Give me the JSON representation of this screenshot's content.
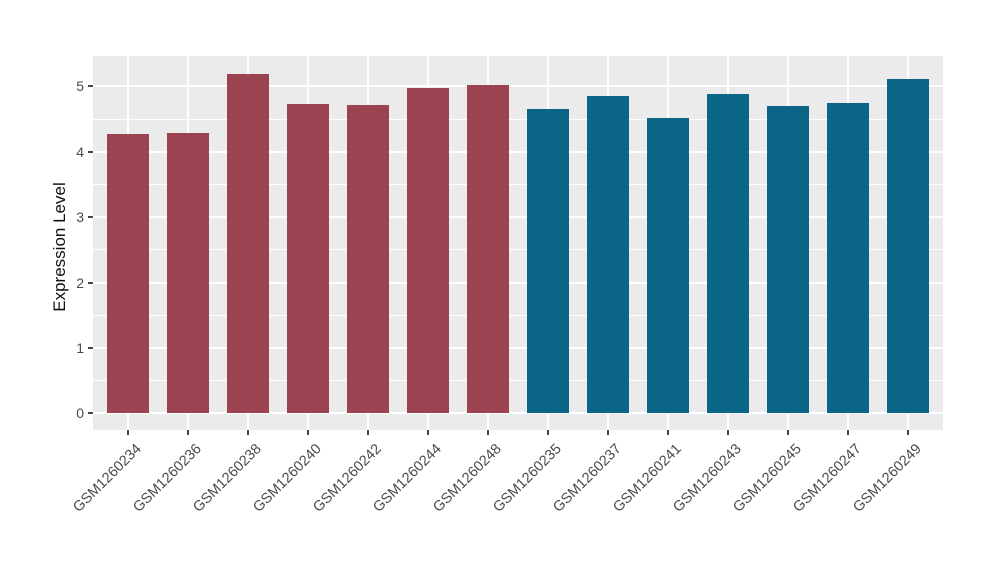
{
  "chart_data": {
    "type": "bar",
    "title": "",
    "xlabel": "",
    "ylabel": "Expression Level",
    "ylim": [
      0,
      5.45
    ],
    "yticks": [
      0,
      1,
      2,
      3,
      4,
      5
    ],
    "y_minor_ticks": [
      0.5,
      1.5,
      2.5,
      3.5,
      4.5
    ],
    "grid": "on",
    "legend_position": "none",
    "panel_background_color": "#EBEBEB",
    "gridline_color": "#FFFFFF",
    "axis_text_color": "#4a4a4a",
    "group_colors": {
      "group1": "#9c4351",
      "group2": "#0b6586"
    },
    "categories": [
      "GSM1260234",
      "GSM1260236",
      "GSM1260238",
      "GSM1260240",
      "GSM1260242",
      "GSM1260244",
      "GSM1260248",
      "GSM1260235",
      "GSM1260237",
      "GSM1260241",
      "GSM1260243",
      "GSM1260245",
      "GSM1260247",
      "GSM1260249"
    ],
    "bars": [
      {
        "label": "GSM1260234",
        "value": 4.27,
        "group": "group1"
      },
      {
        "label": "GSM1260236",
        "value": 4.29,
        "group": "group1"
      },
      {
        "label": "GSM1260238",
        "value": 5.19,
        "group": "group1"
      },
      {
        "label": "GSM1260240",
        "value": 4.73,
        "group": "group1"
      },
      {
        "label": "GSM1260242",
        "value": 4.72,
        "group": "group1"
      },
      {
        "label": "GSM1260244",
        "value": 4.97,
        "group": "group1"
      },
      {
        "label": "GSM1260248",
        "value": 5.02,
        "group": "group1"
      },
      {
        "label": "GSM1260235",
        "value": 4.65,
        "group": "group2"
      },
      {
        "label": "GSM1260237",
        "value": 4.85,
        "group": "group2"
      },
      {
        "label": "GSM1260241",
        "value": 4.52,
        "group": "group2"
      },
      {
        "label": "GSM1260243",
        "value": 4.88,
        "group": "group2"
      },
      {
        "label": "GSM1260245",
        "value": 4.7,
        "group": "group2"
      },
      {
        "label": "GSM1260247",
        "value": 4.75,
        "group": "group2"
      },
      {
        "label": "GSM1260249",
        "value": 5.11,
        "group": "group2"
      }
    ]
  }
}
